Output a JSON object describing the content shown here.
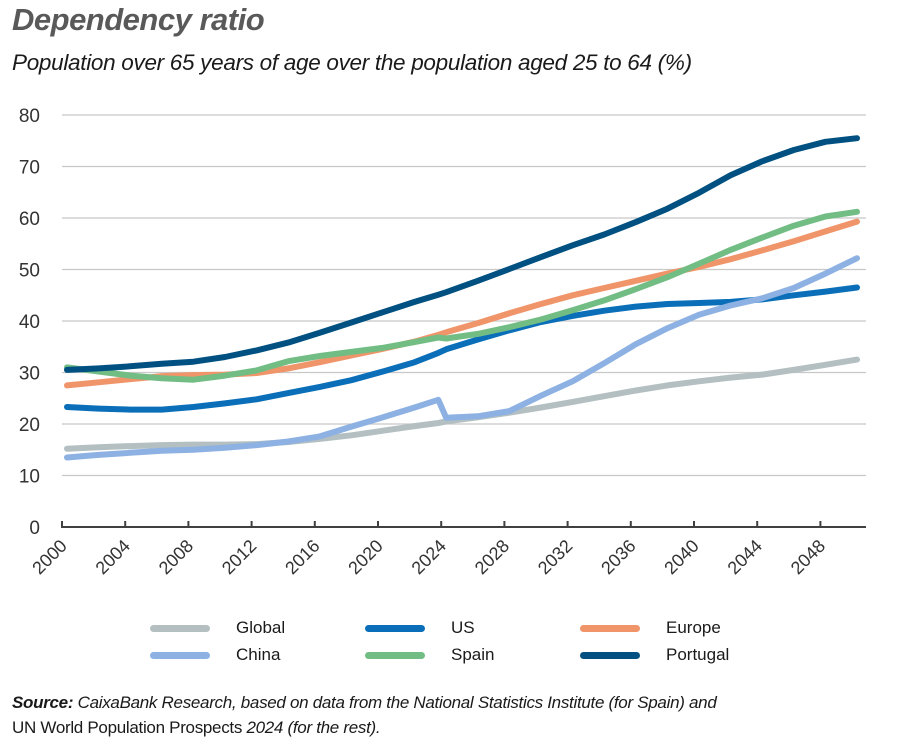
{
  "header": {
    "title": "Dependency ratio",
    "subtitle": "Population over 65 years of age over the population aged 25 to 64 (%)"
  },
  "legend": [
    {
      "label": "Global",
      "color": "#b3bfc1"
    },
    {
      "label": "US",
      "color": "#0a6fb8"
    },
    {
      "label": "Europe",
      "color": "#f0956a"
    },
    {
      "label": "China",
      "color": "#8db1e2"
    },
    {
      "label": "Spain",
      "color": "#72bd84"
    },
    {
      "label": "Portugal",
      "color": "#005181"
    }
  ],
  "source": {
    "label": "Source:",
    "text_italic": " CaixaBank Research, based on data from the National Statistics Institute (for Spain) and",
    "line2_regular": "UN World Population Prospects ",
    "line2_italic": "2024 (for the rest)."
  },
  "chart_data": {
    "type": "line",
    "title": "Dependency ratio",
    "subtitle": "Population over 65 years of age over the population aged 25 to 64 (%)",
    "xlabel": "",
    "ylabel": "",
    "ylim": [
      0,
      80
    ],
    "yticks": [
      0,
      10,
      20,
      30,
      40,
      50,
      60,
      70,
      80
    ],
    "xticks": [
      "2000",
      "2004",
      "2008",
      "2012",
      "2016",
      "2020",
      "2024",
      "2028",
      "2032",
      "2036",
      "2040",
      "2044",
      "2048"
    ],
    "grid": true,
    "legend_position": "bottom",
    "x": [
      2000,
      2002,
      2004,
      2006,
      2008,
      2010,
      2012,
      2014,
      2016,
      2018,
      2020,
      2022,
      2023.5,
      2024,
      2026,
      2028,
      2030,
      2032,
      2034,
      2036,
      2038,
      2040,
      2042,
      2044,
      2046,
      2048,
      2050
    ],
    "series": [
      {
        "name": "Global",
        "color": "#b3bfc1",
        "values": [
          15.2,
          15.5,
          15.7,
          15.9,
          16.0,
          16.0,
          16.1,
          16.5,
          17.1,
          17.8,
          18.7,
          19.6,
          20.2,
          20.5,
          21.3,
          22.2,
          23.2,
          24.3,
          25.4,
          26.5,
          27.5,
          28.3,
          29.0,
          29.6,
          30.5,
          31.5,
          32.5
        ]
      },
      {
        "name": "US",
        "color": "#0a6fb8",
        "values": [
          23.3,
          23.0,
          22.8,
          22.8,
          23.3,
          24.0,
          24.8,
          26.0,
          27.2,
          28.5,
          30.2,
          32.0,
          33.8,
          34.5,
          36.4,
          38.2,
          39.8,
          41.0,
          42.0,
          42.8,
          43.3,
          43.5,
          43.7,
          44.2,
          45.0,
          45.7,
          46.5
        ]
      },
      {
        "name": "Europe",
        "color": "#f0956a",
        "values": [
          27.5,
          28.1,
          28.7,
          29.3,
          29.5,
          29.6,
          29.9,
          30.8,
          32.0,
          33.3,
          34.6,
          36.0,
          37.3,
          37.8,
          39.6,
          41.5,
          43.3,
          45.0,
          46.4,
          47.8,
          49.2,
          50.5,
          52.0,
          53.7,
          55.5,
          57.4,
          59.3
        ]
      },
      {
        "name": "China",
        "color": "#8db1e2",
        "values": [
          13.5,
          14.0,
          14.4,
          14.8,
          15.0,
          15.4,
          15.9,
          16.6,
          17.6,
          19.5,
          21.3,
          23.2,
          24.7,
          21.2,
          21.5,
          22.5,
          25.5,
          28.3,
          31.8,
          35.5,
          38.6,
          41.2,
          43.0,
          44.4,
          46.4,
          49.2,
          52.2
        ]
      },
      {
        "name": "Spain",
        "color": "#72bd84",
        "values": [
          31.0,
          30.2,
          29.4,
          28.9,
          28.6,
          29.4,
          30.4,
          32.2,
          33.2,
          34.0,
          34.8,
          35.9,
          36.8,
          36.6,
          37.5,
          38.8,
          40.3,
          42.1,
          44.0,
          46.2,
          48.5,
          51.1,
          53.8,
          56.2,
          58.5,
          60.3,
          61.2
        ]
      },
      {
        "name": "Portugal",
        "color": "#005181",
        "values": [
          30.5,
          30.8,
          31.2,
          31.7,
          32.1,
          33.0,
          34.3,
          35.8,
          37.7,
          39.7,
          41.7,
          43.7,
          45.1,
          45.6,
          47.8,
          50.1,
          52.4,
          54.7,
          56.8,
          59.2,
          61.8,
          64.9,
          68.3,
          71.0,
          73.2,
          74.8,
          75.5
        ]
      }
    ]
  }
}
